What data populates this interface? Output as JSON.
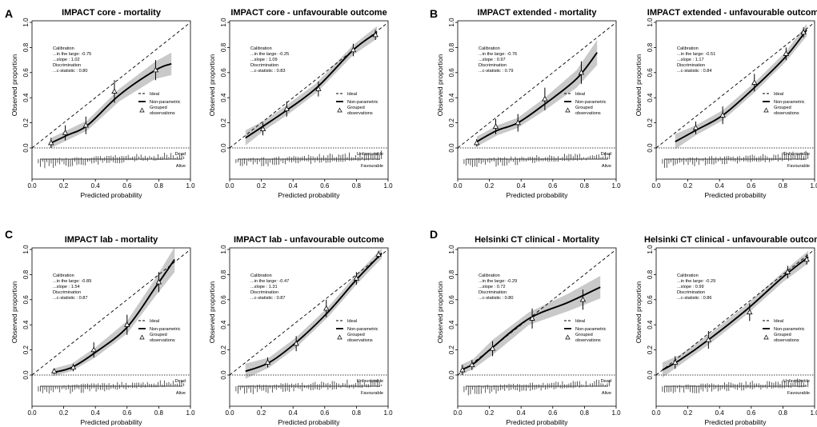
{
  "figure": {
    "panel_labels": [
      "A",
      "B",
      "C",
      "D"
    ],
    "legend": {
      "ideal": "Ideal",
      "nonparametric": "Non-parametric",
      "grouped_line1": "Grouped",
      "grouped_line2": "observations"
    },
    "stat_labels": {
      "calibration": "Calibration",
      "in_the_large": "...in the large:",
      "slope": "...slope :",
      "discrimination": "Discrimination",
      "c_statistic": "...c-statistic :"
    },
    "axis_ticks": [
      "0.0",
      "0.2",
      "0.4",
      "0.6",
      "0.8",
      "1.0"
    ]
  },
  "chart_data": [
    {
      "type": "line",
      "group": "A",
      "title": "IMPACT core - mortality",
      "xlabel": "Predicted probability",
      "ylabel": "Observed proportion",
      "xlim": [
        0,
        1
      ],
      "ylim": [
        0,
        1
      ],
      "stats": {
        "in_the_large": "-0.75",
        "slope": "1.02",
        "c_statistic": "0.80"
      },
      "outcome_labels": {
        "top": "Dead",
        "bottom": "Alive"
      },
      "curve": {
        "x": [
          0.12,
          0.22,
          0.35,
          0.55,
          0.78,
          0.88
        ],
        "y": [
          0.04,
          0.1,
          0.18,
          0.42,
          0.62,
          0.67
        ]
      },
      "band_halfwidth": [
        0.04,
        0.04,
        0.04,
        0.05,
        0.07,
        0.09
      ],
      "grouped": [
        {
          "x": 0.12,
          "y": 0.04,
          "lo": 0.0,
          "hi": 0.08
        },
        {
          "x": 0.21,
          "y": 0.12,
          "lo": 0.06,
          "hi": 0.18
        },
        {
          "x": 0.34,
          "y": 0.18,
          "lo": 0.11,
          "hi": 0.25
        },
        {
          "x": 0.52,
          "y": 0.45,
          "lo": 0.36,
          "hi": 0.54
        },
        {
          "x": 0.78,
          "y": 0.62,
          "lo": 0.54,
          "hi": 0.7
        }
      ]
    },
    {
      "type": "line",
      "group": "A",
      "title": "IMPACT core - unfavourable outcome",
      "xlabel": "Predicted probability",
      "ylabel": "Observed proportion",
      "xlim": [
        0,
        1
      ],
      "ylim": [
        0,
        1
      ],
      "stats": {
        "in_the_large": "-0.25",
        "slope": "1.09",
        "c_statistic": "0.83"
      },
      "outcome_labels": {
        "top": "Unfavourable",
        "bottom": "Favourable"
      },
      "curve": {
        "x": [
          0.1,
          0.22,
          0.36,
          0.55,
          0.78,
          0.93
        ],
        "y": [
          0.08,
          0.18,
          0.3,
          0.48,
          0.78,
          0.92
        ]
      },
      "band_halfwidth": [
        0.06,
        0.04,
        0.04,
        0.04,
        0.04,
        0.05
      ],
      "grouped": [
        {
          "x": 0.21,
          "y": 0.15,
          "lo": 0.1,
          "hi": 0.2
        },
        {
          "x": 0.36,
          "y": 0.31,
          "lo": 0.25,
          "hi": 0.37
        },
        {
          "x": 0.56,
          "y": 0.47,
          "lo": 0.41,
          "hi": 0.53
        },
        {
          "x": 0.78,
          "y": 0.78,
          "lo": 0.73,
          "hi": 0.83
        },
        {
          "x": 0.92,
          "y": 0.9,
          "lo": 0.86,
          "hi": 0.94
        }
      ]
    },
    {
      "type": "line",
      "group": "B",
      "title": "IMPACT extended - mortality",
      "xlabel": "Predicted probability",
      "ylabel": "Observed proportion",
      "xlim": [
        0,
        1
      ],
      "ylim": [
        0,
        1
      ],
      "stats": {
        "in_the_large": "-0.76",
        "slope": "0.97",
        "c_statistic": "0.79"
      },
      "outcome_labels": {
        "top": "Dead",
        "bottom": "Alive"
      },
      "curve": {
        "x": [
          0.12,
          0.25,
          0.38,
          0.55,
          0.75,
          0.88
        ],
        "y": [
          0.05,
          0.14,
          0.2,
          0.35,
          0.55,
          0.76
        ]
      },
      "band_halfwidth": [
        0.04,
        0.04,
        0.04,
        0.05,
        0.07,
        0.1
      ],
      "grouped": [
        {
          "x": 0.12,
          "y": 0.04,
          "lo": 0.01,
          "hi": 0.07
        },
        {
          "x": 0.24,
          "y": 0.17,
          "lo": 0.11,
          "hi": 0.23
        },
        {
          "x": 0.38,
          "y": 0.2,
          "lo": 0.13,
          "hi": 0.27
        },
        {
          "x": 0.55,
          "y": 0.39,
          "lo": 0.3,
          "hi": 0.48
        },
        {
          "x": 0.78,
          "y": 0.6,
          "lo": 0.51,
          "hi": 0.69
        }
      ]
    },
    {
      "type": "line",
      "group": "B",
      "title": "IMPACT extended - unfavourable outcome",
      "xlabel": "Predicted probability",
      "ylabel": "Observed proportion",
      "xlim": [
        0,
        1
      ],
      "ylim": [
        0,
        1
      ],
      "stats": {
        "in_the_large": "-0.51",
        "slope": "1.17",
        "c_statistic": "0.84"
      },
      "outcome_labels": {
        "top": "Unfavourable",
        "bottom": "Favourable"
      },
      "curve": {
        "x": [
          0.12,
          0.25,
          0.42,
          0.62,
          0.82,
          0.95
        ],
        "y": [
          0.05,
          0.14,
          0.26,
          0.48,
          0.73,
          0.94
        ]
      },
      "band_halfwidth": [
        0.06,
        0.04,
        0.04,
        0.04,
        0.04,
        0.05
      ],
      "grouped": [
        {
          "x": 0.25,
          "y": 0.16,
          "lo": 0.11,
          "hi": 0.21
        },
        {
          "x": 0.42,
          "y": 0.26,
          "lo": 0.19,
          "hi": 0.33
        },
        {
          "x": 0.62,
          "y": 0.52,
          "lo": 0.45,
          "hi": 0.59
        },
        {
          "x": 0.82,
          "y": 0.75,
          "lo": 0.7,
          "hi": 0.8
        },
        {
          "x": 0.93,
          "y": 0.92,
          "lo": 0.88,
          "hi": 0.96
        }
      ]
    },
    {
      "type": "line",
      "group": "C",
      "title": "IMPACT lab - mortality",
      "xlabel": "Predicted probability",
      "ylabel": "Observed proportion",
      "xlim": [
        0,
        1
      ],
      "ylim": [
        0,
        1
      ],
      "stats": {
        "in_the_large": "-0.89",
        "slope": "1.54",
        "c_statistic": "0.87"
      },
      "outcome_labels": {
        "top": "Dead",
        "bottom": "Alive"
      },
      "curve": {
        "x": [
          0.13,
          0.25,
          0.4,
          0.6,
          0.78,
          0.9
        ],
        "y": [
          0.02,
          0.06,
          0.18,
          0.38,
          0.7,
          0.92
        ]
      },
      "band_halfwidth": [
        0.03,
        0.03,
        0.04,
        0.05,
        0.07,
        0.1
      ],
      "grouped": [
        {
          "x": 0.14,
          "y": 0.03,
          "lo": 0.01,
          "hi": 0.05
        },
        {
          "x": 0.26,
          "y": 0.06,
          "lo": 0.03,
          "hi": 0.09
        },
        {
          "x": 0.39,
          "y": 0.2,
          "lo": 0.14,
          "hi": 0.26
        },
        {
          "x": 0.6,
          "y": 0.4,
          "lo": 0.32,
          "hi": 0.48
        },
        {
          "x": 0.8,
          "y": 0.74,
          "lo": 0.66,
          "hi": 0.82
        }
      ]
    },
    {
      "type": "line",
      "group": "C",
      "title": "IMPACT lab - unfavourable outcome",
      "xlabel": "Predicted probability",
      "ylabel": "Observed proportion",
      "xlim": [
        0,
        1
      ],
      "ylim": [
        0,
        1
      ],
      "stats": {
        "in_the_large": "-0.47",
        "slope": "1.31",
        "c_statistic": "0.87"
      },
      "outcome_labels": {
        "top": "Unfavourable",
        "bottom": "Favourable"
      },
      "curve": {
        "x": [
          0.1,
          0.25,
          0.42,
          0.62,
          0.8,
          0.96
        ],
        "y": [
          0.03,
          0.1,
          0.26,
          0.5,
          0.76,
          0.97
        ]
      },
      "band_halfwidth": [
        0.06,
        0.04,
        0.04,
        0.04,
        0.04,
        0.04
      ],
      "grouped": [
        {
          "x": 0.24,
          "y": 0.1,
          "lo": 0.06,
          "hi": 0.14
        },
        {
          "x": 0.42,
          "y": 0.25,
          "lo": 0.19,
          "hi": 0.31
        },
        {
          "x": 0.61,
          "y": 0.53,
          "lo": 0.46,
          "hi": 0.6
        },
        {
          "x": 0.8,
          "y": 0.77,
          "lo": 0.72,
          "hi": 0.82
        },
        {
          "x": 0.94,
          "y": 0.96,
          "lo": 0.93,
          "hi": 0.99
        }
      ]
    },
    {
      "type": "line",
      "group": "D",
      "title": "Helsinki CT clinical - Mortality",
      "xlabel": "Predicted probability",
      "ylabel": "Observed proportion",
      "xlim": [
        0,
        1
      ],
      "ylim": [
        0,
        1
      ],
      "stats": {
        "in_the_large": "-0.29",
        "slope": "0.72",
        "c_statistic": "0.80"
      },
      "outcome_labels": {
        "top": "Dead",
        "bottom": "Alive"
      },
      "curve": {
        "x": [
          0.02,
          0.1,
          0.22,
          0.45,
          0.7,
          0.9
        ],
        "y": [
          0.04,
          0.09,
          0.22,
          0.45,
          0.58,
          0.7
        ]
      },
      "band_halfwidth": [
        0.04,
        0.04,
        0.06,
        0.05,
        0.07,
        0.09
      ],
      "grouped": [
        {
          "x": 0.03,
          "y": 0.04,
          "lo": 0.0,
          "hi": 0.08
        },
        {
          "x": 0.09,
          "y": 0.08,
          "lo": 0.04,
          "hi": 0.12
        },
        {
          "x": 0.22,
          "y": 0.21,
          "lo": 0.15,
          "hi": 0.27
        },
        {
          "x": 0.47,
          "y": 0.45,
          "lo": 0.37,
          "hi": 0.53
        },
        {
          "x": 0.79,
          "y": 0.6,
          "lo": 0.52,
          "hi": 0.68
        }
      ]
    },
    {
      "type": "line",
      "group": "D",
      "title": "Helsinki CT clinical - unfavourable outcome",
      "xlabel": "Predicted probability",
      "ylabel": "Observed proportion",
      "xlim": [
        0,
        1
      ],
      "ylim": [
        0,
        1
      ],
      "stats": {
        "in_the_large": "-0.29",
        "slope": "0.99",
        "c_statistic": "0.86"
      },
      "outcome_labels": {
        "top": "Unfavourable",
        "bottom": "Favourable"
      },
      "curve": {
        "x": [
          0.04,
          0.15,
          0.33,
          0.57,
          0.8,
          0.96
        ],
        "y": [
          0.04,
          0.12,
          0.28,
          0.52,
          0.78,
          0.94
        ]
      },
      "band_halfwidth": [
        0.06,
        0.04,
        0.04,
        0.04,
        0.04,
        0.05
      ],
      "grouped": [
        {
          "x": 0.12,
          "y": 0.1,
          "lo": 0.05,
          "hi": 0.15
        },
        {
          "x": 0.33,
          "y": 0.28,
          "lo": 0.21,
          "hi": 0.35
        },
        {
          "x": 0.59,
          "y": 0.5,
          "lo": 0.43,
          "hi": 0.57
        },
        {
          "x": 0.83,
          "y": 0.82,
          "lo": 0.77,
          "hi": 0.87
        },
        {
          "x": 0.95,
          "y": 0.92,
          "lo": 0.88,
          "hi": 0.96
        }
      ]
    }
  ]
}
